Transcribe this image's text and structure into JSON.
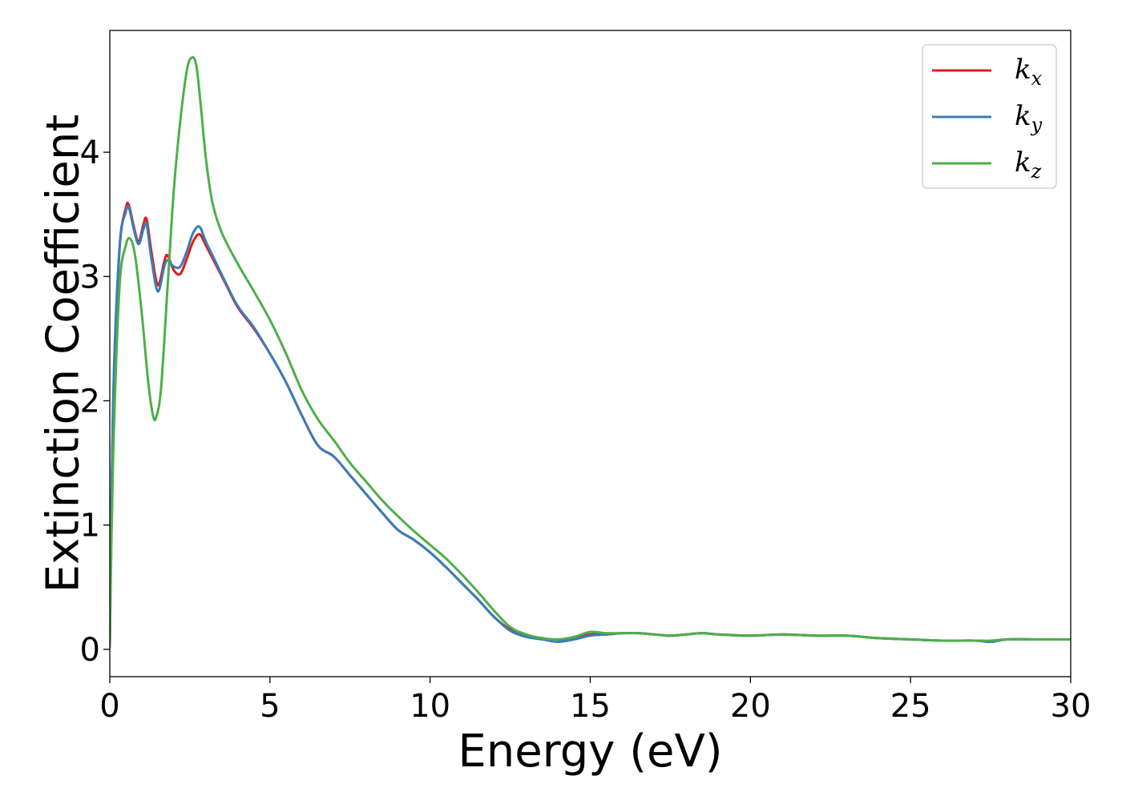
{
  "chart_data": {
    "type": "line",
    "title": "",
    "xlabel": "Energy (eV)",
    "ylabel": "Extinction Coefficient",
    "xlim": [
      0,
      30
    ],
    "ylim": [
      -0.22,
      4.98
    ],
    "xticks": [
      0,
      5,
      10,
      15,
      20,
      25,
      30
    ],
    "xtick_labels": [
      "0",
      "5",
      "10",
      "15",
      "20",
      "25",
      "30"
    ],
    "yticks": [
      0,
      1,
      2,
      3,
      4
    ],
    "ytick_labels": [
      "0",
      "1",
      "2",
      "3",
      "4"
    ],
    "grid": false,
    "legend_position": "top-right",
    "series": [
      {
        "name": "k_x",
        "legend_main": "k",
        "legend_sub": "x",
        "color": "#e41a1c",
        "x": [
          0,
          0.1,
          0.3,
          0.5,
          0.6,
          0.75,
          0.9,
          1.05,
          1.15,
          1.3,
          1.5,
          1.7,
          1.8,
          2.0,
          2.2,
          2.4,
          2.6,
          2.8,
          3.0,
          3.3,
          3.6,
          4.0,
          4.5,
          5.0,
          5.5,
          6.0,
          6.5,
          7.0,
          7.5,
          8.0,
          8.5,
          9.0,
          9.5,
          10.0,
          10.5,
          11.0,
          11.5,
          12.0,
          12.5,
          13.0,
          13.5,
          14.0,
          14.5,
          15.0,
          15.5,
          16.0,
          16.5,
          17.0,
          17.5,
          18.0,
          18.5,
          19.0,
          20.0,
          21.0,
          22.0,
          23.0,
          24.0,
          25.0,
          26.0,
          27.0,
          27.5,
          28.0,
          29.0,
          30.0
        ],
        "y": [
          0.02,
          1.9,
          3.2,
          3.55,
          3.57,
          3.4,
          3.28,
          3.42,
          3.46,
          3.2,
          2.93,
          3.12,
          3.17,
          3.05,
          3.02,
          3.14,
          3.28,
          3.34,
          3.25,
          3.1,
          2.95,
          2.75,
          2.58,
          2.38,
          2.15,
          1.88,
          1.64,
          1.55,
          1.4,
          1.25,
          1.1,
          0.96,
          0.88,
          0.78,
          0.66,
          0.53,
          0.4,
          0.26,
          0.16,
          0.11,
          0.09,
          0.07,
          0.09,
          0.12,
          0.12,
          0.13,
          0.13,
          0.12,
          0.11,
          0.12,
          0.13,
          0.12,
          0.11,
          0.12,
          0.11,
          0.11,
          0.09,
          0.08,
          0.07,
          0.07,
          0.06,
          0.08,
          0.08,
          0.08
        ]
      },
      {
        "name": "k_y",
        "legend_main": "k",
        "legend_sub": "y",
        "color": "#377eb8",
        "x": [
          0,
          0.1,
          0.3,
          0.5,
          0.6,
          0.75,
          0.9,
          1.05,
          1.15,
          1.3,
          1.5,
          1.7,
          1.8,
          2.0,
          2.2,
          2.4,
          2.6,
          2.8,
          3.0,
          3.3,
          3.6,
          4.0,
          4.5,
          5.0,
          5.5,
          6.0,
          6.5,
          7.0,
          7.5,
          8.0,
          8.5,
          9.0,
          9.5,
          10.0,
          10.5,
          11.0,
          11.5,
          12.0,
          12.5,
          13.0,
          13.5,
          14.0,
          14.5,
          15.0,
          15.5,
          16.0,
          16.5,
          17.0,
          17.5,
          18.0,
          18.5,
          19.0,
          20.0,
          21.0,
          22.0,
          23.0,
          24.0,
          25.0,
          26.0,
          27.0,
          27.5,
          28.0,
          29.0,
          30.0
        ],
        "y": [
          0.02,
          1.95,
          3.22,
          3.52,
          3.55,
          3.38,
          3.26,
          3.38,
          3.42,
          3.14,
          2.88,
          3.08,
          3.13,
          3.08,
          3.08,
          3.2,
          3.35,
          3.4,
          3.28,
          3.12,
          2.96,
          2.76,
          2.59,
          2.38,
          2.15,
          1.88,
          1.64,
          1.55,
          1.4,
          1.25,
          1.1,
          0.96,
          0.88,
          0.78,
          0.66,
          0.53,
          0.4,
          0.26,
          0.15,
          0.1,
          0.08,
          0.06,
          0.08,
          0.11,
          0.12,
          0.13,
          0.13,
          0.12,
          0.11,
          0.12,
          0.13,
          0.12,
          0.11,
          0.12,
          0.11,
          0.11,
          0.09,
          0.08,
          0.07,
          0.07,
          0.06,
          0.08,
          0.08,
          0.08
        ]
      },
      {
        "name": "k_z",
        "legend_main": "k",
        "legend_sub": "z",
        "color": "#4daf4a",
        "x": [
          0,
          0.1,
          0.3,
          0.5,
          0.65,
          0.8,
          1.0,
          1.2,
          1.35,
          1.45,
          1.6,
          1.8,
          2.0,
          2.2,
          2.4,
          2.55,
          2.7,
          2.85,
          3.0,
          3.2,
          3.5,
          4.0,
          4.5,
          5.0,
          5.5,
          6.0,
          6.5,
          7.0,
          7.5,
          8.0,
          8.5,
          9.0,
          9.5,
          10.0,
          10.5,
          11.0,
          11.5,
          12.0,
          12.5,
          13.0,
          13.5,
          14.0,
          14.5,
          15.0,
          15.5,
          16.0,
          16.5,
          17.0,
          17.5,
          18.0,
          18.5,
          19.0,
          20.0,
          21.0,
          22.0,
          23.0,
          24.0,
          25.0,
          26.0,
          27.0,
          27.5,
          28.0,
          29.0,
          30.0
        ],
        "y": [
          0.02,
          1.5,
          2.9,
          3.25,
          3.3,
          3.15,
          2.7,
          2.15,
          1.88,
          1.87,
          2.1,
          2.9,
          3.7,
          4.25,
          4.65,
          4.76,
          4.7,
          4.35,
          3.95,
          3.6,
          3.35,
          3.1,
          2.88,
          2.65,
          2.38,
          2.08,
          1.85,
          1.68,
          1.5,
          1.35,
          1.2,
          1.07,
          0.95,
          0.84,
          0.73,
          0.6,
          0.46,
          0.31,
          0.18,
          0.12,
          0.09,
          0.08,
          0.1,
          0.14,
          0.13,
          0.13,
          0.13,
          0.12,
          0.11,
          0.12,
          0.13,
          0.12,
          0.11,
          0.12,
          0.11,
          0.11,
          0.09,
          0.08,
          0.07,
          0.07,
          0.07,
          0.08,
          0.08,
          0.08
        ]
      }
    ]
  }
}
